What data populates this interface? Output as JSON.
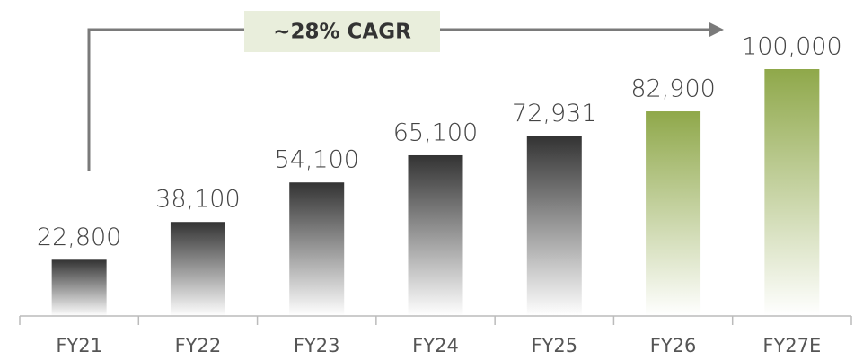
{
  "chart_data": {
    "type": "bar",
    "categories": [
      "FY21",
      "FY22",
      "FY23",
      "FY24",
      "FY25",
      "FY26",
      "FY27E"
    ],
    "values": [
      22800,
      38100,
      54100,
      65100,
      72931,
      82900,
      100000
    ],
    "value_labels": [
      "22,800",
      "38,100",
      "54,100",
      "65,100",
      "72,931",
      "82,900",
      "100,000"
    ],
    "colors": [
      "#333333",
      "#333333",
      "#333333",
      "#333333",
      "#333333",
      "#8fa84a",
      "#8fa84a"
    ],
    "annotation": "~28% CAGR"
  }
}
